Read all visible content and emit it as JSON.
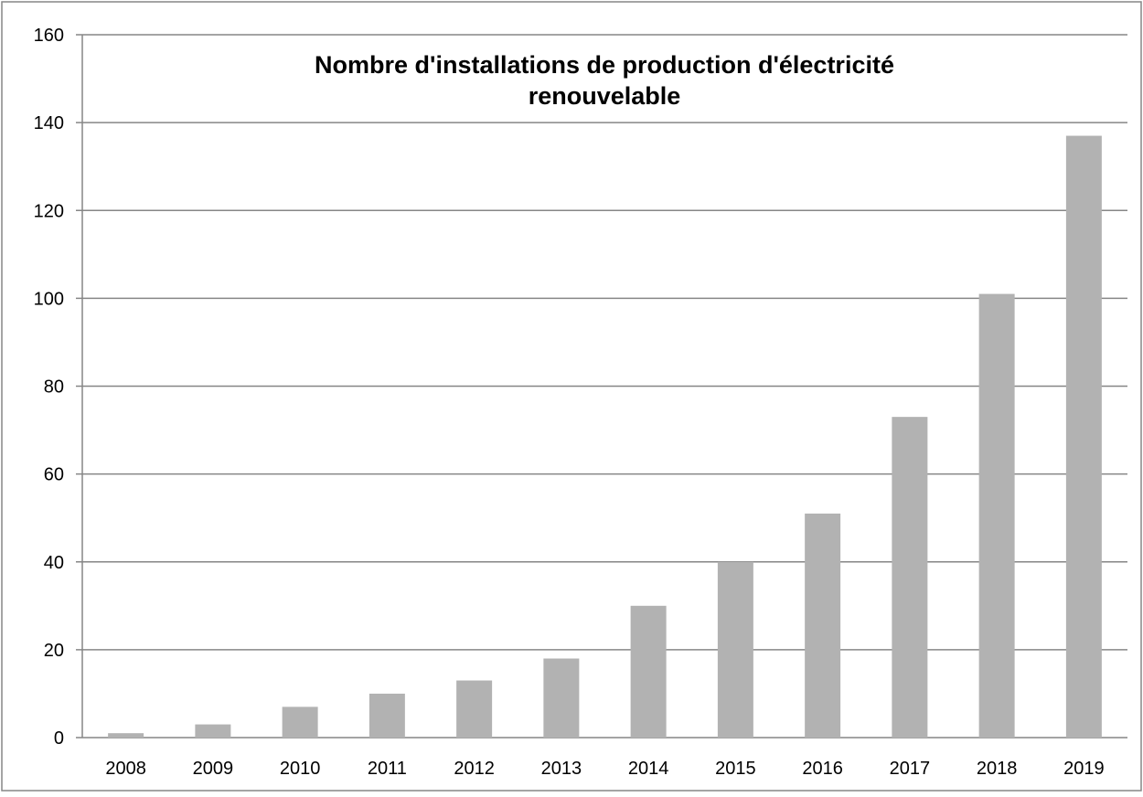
{
  "chart_data": {
    "type": "bar",
    "title_lines": [
      "Nombre d'installations de production d'électricité",
      "renouvelable"
    ],
    "categories": [
      "2008",
      "2009",
      "2010",
      "2011",
      "2012",
      "2013",
      "2014",
      "2015",
      "2016",
      "2017",
      "2018",
      "2019"
    ],
    "values": [
      1,
      3,
      7,
      10,
      13,
      18,
      30,
      40,
      51,
      73,
      101,
      137
    ],
    "xlabel": "",
    "ylabel": "",
    "ylim": [
      0,
      160
    ],
    "yticks": [
      "0",
      "20",
      "40",
      "60",
      "80",
      "100",
      "120",
      "140",
      "160"
    ],
    "grid": true,
    "legend": "none",
    "colors": {
      "bar": "#b2b2b2",
      "grid": "#868686",
      "axis": "#868686",
      "border": "#868686"
    }
  }
}
